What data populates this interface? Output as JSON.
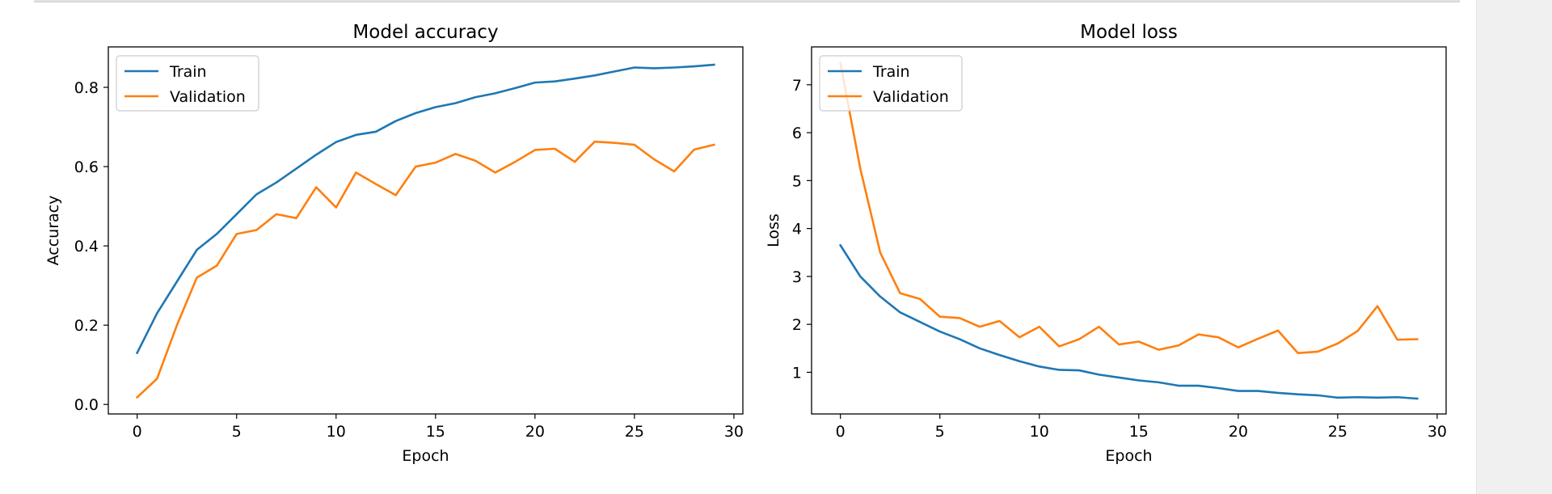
{
  "chart_data": [
    {
      "type": "line",
      "title": "Model accuracy",
      "xlabel": "Epoch",
      "ylabel": "Accuracy",
      "xlim": [
        -1.45,
        30.45
      ],
      "ylim": [
        -0.024,
        0.902
      ],
      "xticks": [
        0,
        5,
        10,
        15,
        20,
        25,
        30
      ],
      "yticks": [
        0.0,
        0.2,
        0.4,
        0.6,
        0.8
      ],
      "ytick_labels": [
        "0.0",
        "0.2",
        "0.4",
        "0.6",
        "0.8"
      ],
      "grid": false,
      "legend_position": "upper-left",
      "series": [
        {
          "name": "Train",
          "color": "#1f77b4",
          "x": [
            0,
            1,
            2,
            3,
            4,
            5,
            6,
            7,
            8,
            9,
            10,
            11,
            12,
            13,
            14,
            15,
            16,
            17,
            18,
            19,
            20,
            21,
            22,
            23,
            24,
            25,
            26,
            27,
            28,
            29
          ],
          "values": [
            0.13,
            0.23,
            0.31,
            0.39,
            0.43,
            0.48,
            0.53,
            0.56,
            0.595,
            0.63,
            0.662,
            0.68,
            0.688,
            0.715,
            0.735,
            0.75,
            0.76,
            0.775,
            0.785,
            0.798,
            0.812,
            0.815,
            0.822,
            0.83,
            0.84,
            0.85,
            0.848,
            0.85,
            0.853,
            0.857
          ]
        },
        {
          "name": "Validation",
          "color": "#ff7f0e",
          "x": [
            0,
            1,
            2,
            3,
            4,
            5,
            6,
            7,
            8,
            9,
            10,
            11,
            12,
            13,
            14,
            15,
            16,
            17,
            18,
            19,
            20,
            21,
            22,
            23,
            24,
            25,
            26,
            27,
            28,
            29
          ],
          "values": [
            0.018,
            0.065,
            0.2,
            0.32,
            0.35,
            0.43,
            0.44,
            0.48,
            0.47,
            0.548,
            0.497,
            0.585,
            0.556,
            0.528,
            0.6,
            0.61,
            0.632,
            0.615,
            0.585,
            0.612,
            0.642,
            0.645,
            0.612,
            0.663,
            0.66,
            0.655,
            0.618,
            0.588,
            0.643,
            0.655
          ]
        }
      ]
    },
    {
      "type": "line",
      "title": "Model loss",
      "xlabel": "Epoch",
      "ylabel": "Loss",
      "xlim": [
        -1.45,
        30.45
      ],
      "ylim": [
        0.13,
        7.79
      ],
      "xticks": [
        0,
        5,
        10,
        15,
        20,
        25,
        30
      ],
      "yticks": [
        1,
        2,
        3,
        4,
        5,
        6,
        7
      ],
      "ytick_labels": [
        "1",
        "2",
        "3",
        "4",
        "5",
        "6",
        "7"
      ],
      "grid": false,
      "legend_position": "upper-left",
      "series": [
        {
          "name": "Train",
          "color": "#1f77b4",
          "x": [
            0,
            1,
            2,
            3,
            4,
            5,
            6,
            7,
            8,
            9,
            10,
            11,
            12,
            13,
            14,
            15,
            16,
            17,
            18,
            19,
            20,
            21,
            22,
            23,
            24,
            25,
            26,
            27,
            28,
            29
          ],
          "values": [
            3.65,
            3.0,
            2.58,
            2.25,
            2.05,
            1.85,
            1.69,
            1.5,
            1.36,
            1.23,
            1.12,
            1.05,
            1.04,
            0.95,
            0.89,
            0.83,
            0.79,
            0.72,
            0.72,
            0.67,
            0.61,
            0.61,
            0.57,
            0.54,
            0.52,
            0.47,
            0.48,
            0.47,
            0.48,
            0.45
          ]
        },
        {
          "name": "Validation",
          "color": "#ff7f0e",
          "x": [
            0,
            1,
            2,
            3,
            4,
            5,
            6,
            7,
            8,
            9,
            10,
            11,
            12,
            13,
            14,
            15,
            16,
            17,
            18,
            19,
            20,
            21,
            22,
            23,
            24,
            25,
            26,
            27,
            28,
            29
          ],
          "values": [
            7.45,
            5.25,
            3.5,
            2.65,
            2.53,
            2.16,
            2.13,
            1.95,
            2.07,
            1.73,
            1.95,
            1.54,
            1.69,
            1.95,
            1.58,
            1.64,
            1.47,
            1.56,
            1.79,
            1.73,
            1.52,
            1.7,
            1.87,
            1.4,
            1.43,
            1.6,
            1.86,
            2.38,
            1.68,
            1.69
          ]
        }
      ]
    }
  ]
}
